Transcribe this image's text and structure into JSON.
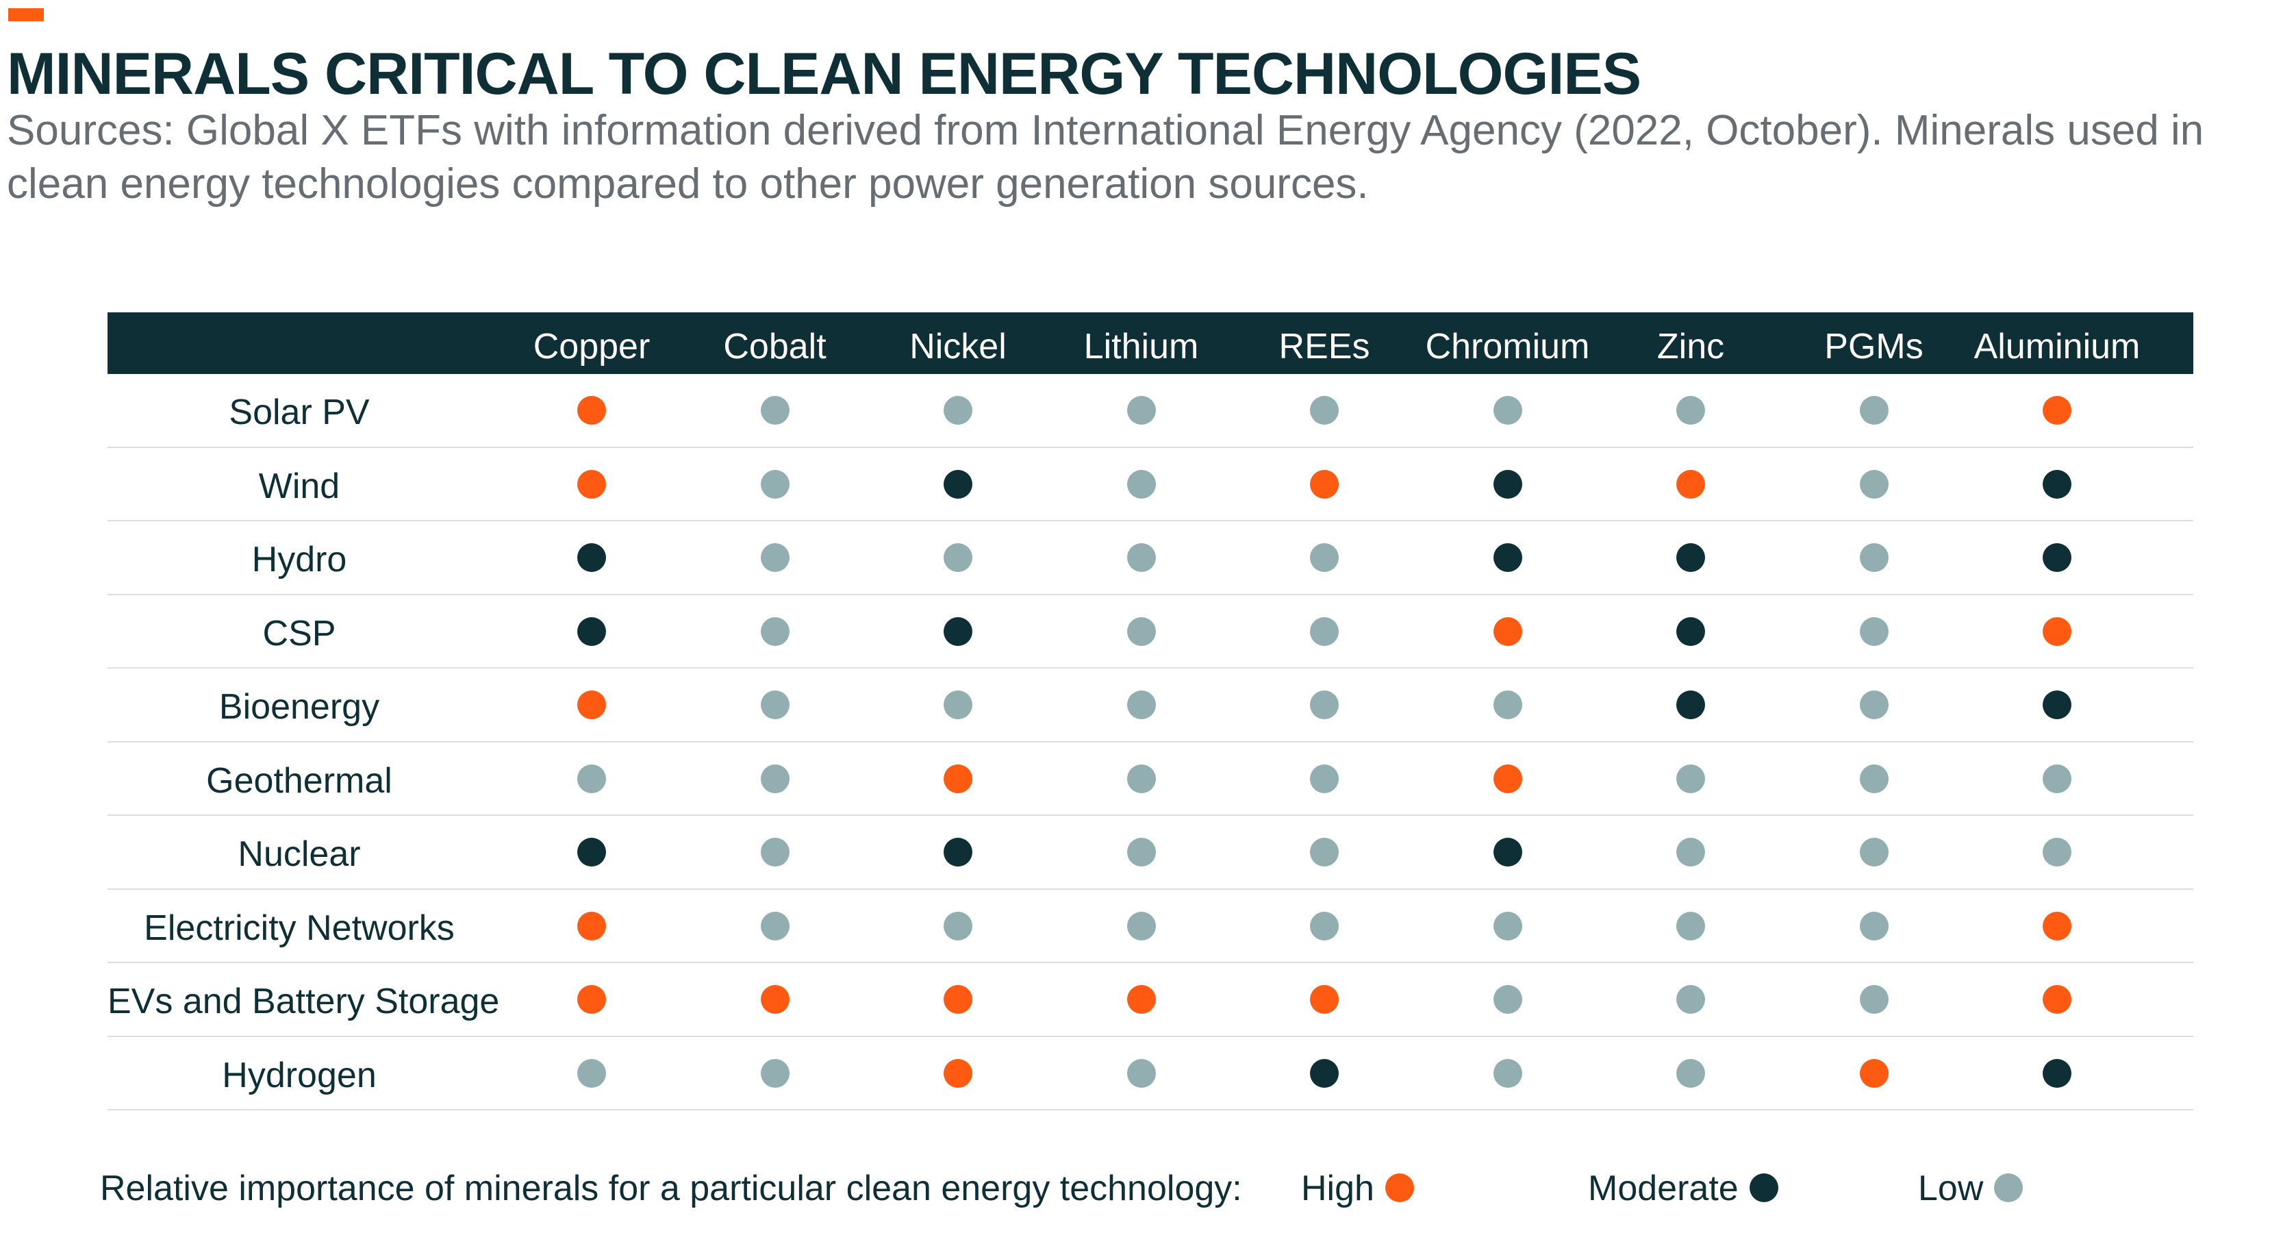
{
  "title": "MINERALS CRITICAL TO CLEAN ENERGY TECHNOLOGIES",
  "subtitle": "Sources: Global X ETFs with information derived from International Energy Agency (2022, October). Minerals used in clean energy technologies compared to other power generation sources.",
  "colors": {
    "accent": "#ff5a12",
    "header_bg": "#0e2f35",
    "high": "#ff5a12",
    "moderate": "#0e2f35",
    "low": "#93aeb0"
  },
  "chart_data": {
    "type": "table",
    "columns": [
      "Copper",
      "Cobalt",
      "Nickel",
      "Lithium",
      "REEs",
      "Chromium",
      "Zinc",
      "PGMs",
      "Aluminium"
    ],
    "rows": [
      {
        "label": "Solar PV",
        "values": [
          "High",
          "Low",
          "Low",
          "Low",
          "Low",
          "Low",
          "Low",
          "Low",
          "High"
        ]
      },
      {
        "label": "Wind",
        "values": [
          "High",
          "Low",
          "Moderate",
          "Low",
          "High",
          "Moderate",
          "High",
          "Low",
          "Moderate"
        ]
      },
      {
        "label": "Hydro",
        "values": [
          "Moderate",
          "Low",
          "Low",
          "Low",
          "Low",
          "Moderate",
          "Moderate",
          "Low",
          "Moderate"
        ]
      },
      {
        "label": "CSP",
        "values": [
          "Moderate",
          "Low",
          "Moderate",
          "Low",
          "Low",
          "High",
          "Moderate",
          "Low",
          "High"
        ]
      },
      {
        "label": "Bioenergy",
        "values": [
          "High",
          "Low",
          "Low",
          "Low",
          "Low",
          "Low",
          "Moderate",
          "Low",
          "Moderate"
        ]
      },
      {
        "label": "Geothermal",
        "values": [
          "Low",
          "Low",
          "High",
          "Low",
          "Low",
          "High",
          "Low",
          "Low",
          "Low"
        ]
      },
      {
        "label": "Nuclear",
        "values": [
          "Moderate",
          "Low",
          "Moderate",
          "Low",
          "Low",
          "Moderate",
          "Low",
          "Low",
          "Low"
        ]
      },
      {
        "label": "Electricity Networks",
        "values": [
          "High",
          "Low",
          "Low",
          "Low",
          "Low",
          "Low",
          "Low",
          "Low",
          "High"
        ]
      },
      {
        "label": "EVs and Battery Storage",
        "values": [
          "High",
          "High",
          "High",
          "High",
          "High",
          "Low",
          "Low",
          "Low",
          "High"
        ]
      },
      {
        "label": "Hydrogen",
        "values": [
          "Low",
          "Low",
          "High",
          "Low",
          "Moderate",
          "Low",
          "Low",
          "High",
          "Moderate"
        ]
      }
    ],
    "legend": {
      "caption": "Relative importance of minerals for a particular clean energy technology:",
      "levels": [
        "High",
        "Moderate",
        "Low"
      ]
    }
  }
}
